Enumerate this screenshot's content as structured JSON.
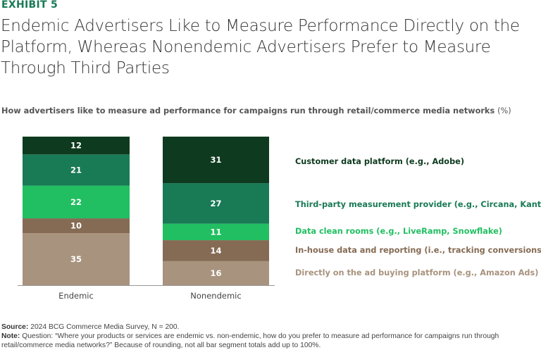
{
  "exhibit_label": "EXHIBIT 5",
  "title": "Endemic Advertisers Like to Measure Performance Directly on the Platform, Whereas Nonendemic Advertisers Prefer to Measure Through Third Parties",
  "subtitle": "How advertisers like to measure ad performance for campaigns run through retail/commerce media networks",
  "subtitle_unit": "(%)",
  "chart_data": {
    "type": "bar",
    "stacked": true,
    "normalized_to_100": true,
    "categories": [
      "Endemic",
      "Nonendemic"
    ],
    "series": [
      {
        "name": "Directly on the ad buying platform (e.g., Amazon Ads)",
        "values": [
          35,
          16
        ],
        "color": "#a8937e"
      },
      {
        "name": "In-house data and reporting (i.e., tracking conversions)",
        "values": [
          10,
          14
        ],
        "color": "#856b54"
      },
      {
        "name": "Data clean rooms (e.g., LiveRamp, Snowflake)",
        "values": [
          22,
          11
        ],
        "color": "#21bf61"
      },
      {
        "name": "Third-party measurement provider (e.g., Circana, Kantar)",
        "values": [
          21,
          27
        ],
        "color": "#197a56"
      },
      {
        "name": "Customer data platform (e.g., Adobe)",
        "values": [
          12,
          31
        ],
        "color": "#0e3b1f"
      }
    ],
    "legend_placement": "right",
    "grid": false
  },
  "footer": {
    "source_label": "Source:",
    "source_text": "2024 BCG Commerce Media Survey, N = 200.",
    "note_label": "Note:",
    "note_text": "Question: “Where your products or services are endemic vs. non-endemic, how do you prefer to measure ad performance for campaigns run through retail/commerce media networks?” Because of rounding, not all bar segment totals add up to 100%."
  }
}
